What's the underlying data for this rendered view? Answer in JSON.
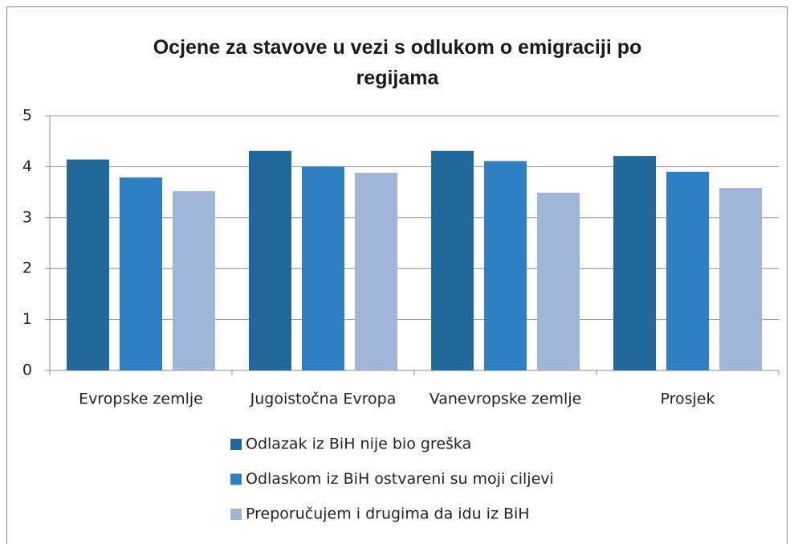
{
  "chart_data": {
    "type": "bar",
    "title": "Ocjene za stavove u vezi s odlukom o emigraciji po regijama",
    "categories": [
      "Evropske zemlje",
      "Jugoistočna Evropa",
      "Vanevropske zemlje",
      "Prosjek"
    ],
    "series": [
      {
        "name": "Odlazak iz BiH nije bio greška",
        "color": "#22699b",
        "values": [
          4.14,
          4.31,
          4.31,
          4.21
        ]
      },
      {
        "name": "Odlaskom iz BiH ostvareni su moji ciljevi",
        "color": "#2f80c2",
        "values": [
          3.79,
          4.0,
          4.11,
          3.9
        ]
      },
      {
        "name": "Preporučujem i drugima da idu iz BiH",
        "color": "#a0b5d7",
        "values": [
          3.52,
          3.88,
          3.49,
          3.58
        ]
      }
    ],
    "ylim": [
      0,
      5
    ],
    "yticks": [
      0,
      1,
      2,
      3,
      4,
      5
    ],
    "grid": true,
    "legend": "bottom"
  }
}
